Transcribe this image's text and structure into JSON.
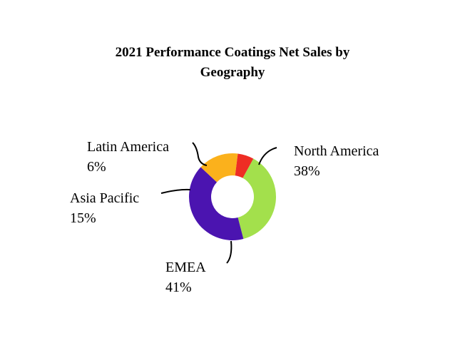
{
  "chart_data": {
    "type": "pie",
    "variant": "donut",
    "title_lines": [
      "2021 Performance Coatings Net Sales by",
      "Geography"
    ],
    "slices": [
      {
        "label": "North America",
        "percent_label": "38%",
        "value": 38,
        "color": "#a3e04c"
      },
      {
        "label": "EMEA",
        "percent_label": "41%",
        "value": 41,
        "color": "#4b14b0"
      },
      {
        "label": "Asia Pacific",
        "percent_label": "15%",
        "value": 15,
        "color": "#fbb11c"
      },
      {
        "label": "Latin America",
        "percent_label": "6%",
        "value": 6,
        "color": "#ee2d24"
      }
    ],
    "legend": "none"
  }
}
